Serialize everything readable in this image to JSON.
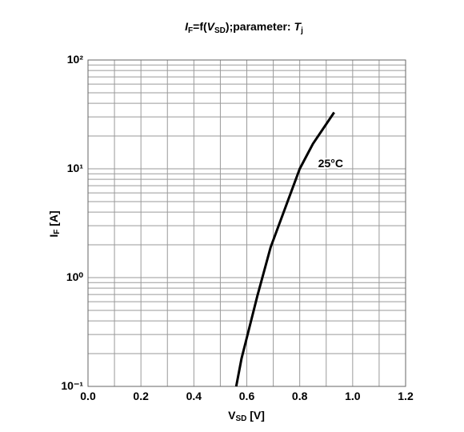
{
  "chart_data": {
    "type": "line",
    "title": [
      "I",
      "F",
      "=f(",
      "V",
      "SD",
      ");parameter:  ",
      "T",
      "j"
    ],
    "xlabel": [
      "V",
      "SD",
      " [V]"
    ],
    "ylabel": [
      "I",
      "F",
      " [A]"
    ],
    "xlim": [
      0,
      1.2
    ],
    "xticks": [
      {
        "value": 0,
        "label": "0.0"
      },
      0.2,
      0.4,
      0.6,
      0.8,
      {
        "value": 1,
        "label": "1.0"
      },
      1.2
    ],
    "minor_xticks": [
      0.1,
      0.3,
      0.5,
      0.7,
      0.9,
      1.1
    ],
    "ylim": [
      0.1,
      100
    ],
    "yscale": "log",
    "yticks": [
      {
        "value": 0.1,
        "label": "10⁻¹"
      },
      {
        "value": 1,
        "label": "10⁰"
      },
      {
        "value": 10,
        "label": "10¹"
      },
      {
        "value": 100,
        "label": "10²"
      }
    ],
    "minor_yticks": [
      0.2,
      0.3,
      0.4,
      0.5,
      0.6,
      0.7,
      0.8,
      0.9,
      2,
      3,
      4,
      5,
      6,
      7,
      8,
      9,
      20,
      30,
      40,
      50,
      60,
      70,
      80,
      90
    ],
    "grid": true,
    "series": [
      {
        "name": "25°C",
        "color": "#000000",
        "x": [
          0.56,
          0.58,
          0.6,
          0.64,
          0.69,
          0.75,
          0.8,
          0.85,
          0.93
        ],
        "values": [
          0.1,
          0.18,
          0.28,
          0.68,
          1.9,
          4.7,
          10,
          17,
          33
        ]
      }
    ]
  }
}
